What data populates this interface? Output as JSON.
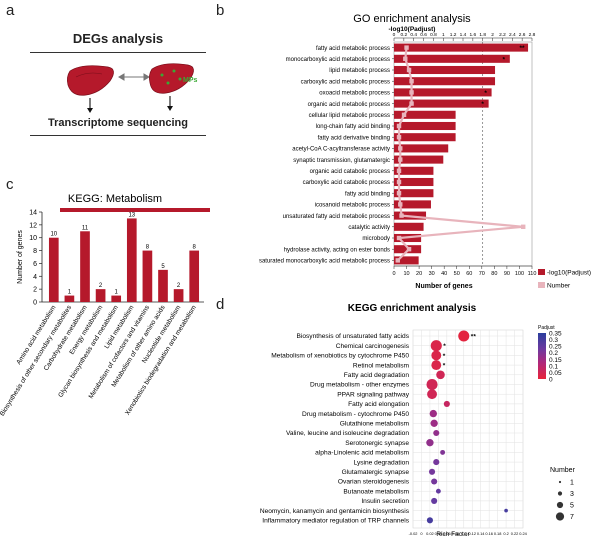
{
  "panel_a": {
    "letter": "a",
    "title": "DEGs analysis",
    "mps_label": "MPs",
    "bottom": "Transcriptome sequencing"
  },
  "panel_c": {
    "letter": "c"
  },
  "panel_b": {
    "letter": "b"
  },
  "panel_d": {
    "letter": "d"
  },
  "colors": {
    "bar": "#b5192b",
    "number": "#e8b4bc",
    "green": "#3aa935"
  },
  "chart_data": [
    {
      "id": "kegg_metabolism",
      "type": "bar",
      "title": "KEGG: Metabolism",
      "ylabel": "Number of genes",
      "ylim": [
        0,
        14
      ],
      "yticks": [
        0,
        2,
        4,
        6,
        8,
        10,
        12,
        14
      ],
      "categories": [
        "Amino acid metabolism",
        "Biosynthesis of other secondary metabolites",
        "Carbohydrate metabolism",
        "Energy metabolism",
        "Glycan biosynthesis and metabolism",
        "Lipid metabolism",
        "Metabolism of cofactors and vitamins",
        "Metabolism of other amino acids",
        "Nucleotide metabolism",
        "Xenobiotics biodegradation and metabolism"
      ],
      "values": [
        10,
        1,
        11,
        2,
        1,
        13,
        8,
        5,
        2,
        8
      ]
    },
    {
      "id": "go_enrichment",
      "type": "bar",
      "title": "GO enrichment analysis",
      "top_axis_label": "-log10(Padjust)",
      "top_ticks": [
        "0",
        "0.2",
        "0.4",
        "0.6",
        "0.8",
        "1",
        "1.2",
        "1.4",
        "1.6",
        "1.8",
        "2",
        "2.2",
        "2.4",
        "2.6",
        "2.8"
      ],
      "xlabel": "Number of genes",
      "bottom_ticks": [
        "0",
        "10",
        "20",
        "30",
        "40",
        "50",
        "60",
        "70",
        "80",
        "90",
        "100",
        "110"
      ],
      "legend": [
        "-log10(Padjust)",
        "Number"
      ],
      "terms": [
        "fatty acid metabolic process",
        "monocarboxylic acid metabolic process",
        "lipid metabolic process",
        "carboxylic acid metabolic process",
        "oxoacid metabolic process",
        "organic acid metabolic process",
        "cellular lipid metabolic process",
        "long-chain fatty acid binding",
        "fatty acid derivative binding",
        "acetyl-CoA C-acyltransferase activity",
        "synaptic transmission, glutamatergic",
        "organic acid catabolic process",
        "carboxylic acid catabolic process",
        "fatty acid binding",
        "icosanoid metabolic process",
        "unsaturated fatty acid metabolic process",
        "catalytic activity",
        "microbody",
        "hydrolase activity, acting on ester bonds",
        "saturated monocarboxylic acid metabolic process"
      ],
      "neglog10_padj": [
        2.72,
        2.35,
        2.05,
        2.05,
        1.98,
        1.92,
        1.25,
        1.25,
        1.25,
        1.1,
        1.0,
        0.8,
        0.8,
        0.8,
        0.75,
        0.65,
        0.6,
        0.55,
        0.55,
        0.5
      ],
      "gene_counts": [
        10,
        9,
        12,
        14,
        14,
        14,
        8,
        4,
        4,
        5,
        5,
        4,
        4,
        4,
        5,
        6,
        103,
        4,
        12,
        3
      ],
      "stars": [
        "**",
        "*",
        "",
        "",
        "*",
        "*",
        "",
        "",
        "",
        "",
        "",
        "",
        "",
        "",
        "",
        "",
        "",
        "",
        "",
        ""
      ],
      "dashed_line_at_neglog10": 1.8
    },
    {
      "id": "kegg_enrichment",
      "type": "scatter",
      "title": "KEGG enrichment analysis",
      "xlabel": "Rich Factor",
      "xticks": [
        "-0.02",
        "0",
        "0.02",
        "0.04",
        "0.06",
        "0.08",
        "0.1",
        "0.12",
        "0.14",
        "0.16",
        "0.18",
        "0.2",
        "0.22",
        "0.24"
      ],
      "xlim": [
        -0.02,
        0.24
      ],
      "colorbar_title": "Padjust",
      "colorbar_ticks": [
        "0.35",
        "0.3",
        "0.25",
        "0.2",
        "0.15",
        "0.1",
        "0.05",
        "0"
      ],
      "size_legend_title": "Number",
      "size_legend": [
        1,
        3,
        5,
        7
      ],
      "pathways": [
        "Biosynthesis of unsaturated fatty acids",
        "Chemical carcinogenesis",
        "Metabolism of xenobiotics by cytochrome P450",
        "Retinol metabolism",
        "Fatty acid degradation",
        "Drug metabolism - other enzymes",
        "PPAR signaling pathway",
        "Fatty acid elongation",
        "Drug metabolism - cytochrome P450",
        "Glutathione metabolism",
        "Valine, leucine and isoleucine degradation",
        "Serotonergic synapse",
        "alpha-Linolenic acid metabolism",
        "Lysine degradation",
        "Glutamatergic synapse",
        "Ovarian steroidogenesis",
        "Butanoate metabolism",
        "Insulin secretion",
        "Neomycin, kanamycin and gentamicin biosynthesis",
        "Inflammatory mediator regulation of TRP channels"
      ],
      "rich_factor": [
        0.1,
        0.035,
        0.035,
        0.035,
        0.045,
        0.025,
        0.025,
        0.06,
        0.028,
        0.03,
        0.035,
        0.02,
        0.05,
        0.035,
        0.025,
        0.03,
        0.04,
        0.03,
        0.2,
        0.02
      ],
      "counts": [
        7,
        7,
        6,
        6,
        5,
        7,
        6,
        3,
        4,
        4,
        3,
        4,
        2,
        3,
        3,
        3,
        2,
        3,
        1,
        3
      ],
      "padjust": [
        0.01,
        0.03,
        0.03,
        0.03,
        0.05,
        0.05,
        0.05,
        0.07,
        0.15,
        0.15,
        0.17,
        0.17,
        0.2,
        0.22,
        0.22,
        0.22,
        0.25,
        0.25,
        0.3,
        0.3
      ],
      "stars": [
        "**",
        "*",
        "*",
        "*",
        "",
        "",
        "",
        "",
        "",
        "",
        "",
        "",
        "",
        "",
        "",
        "",
        "",
        "",
        "",
        ""
      ]
    }
  ]
}
